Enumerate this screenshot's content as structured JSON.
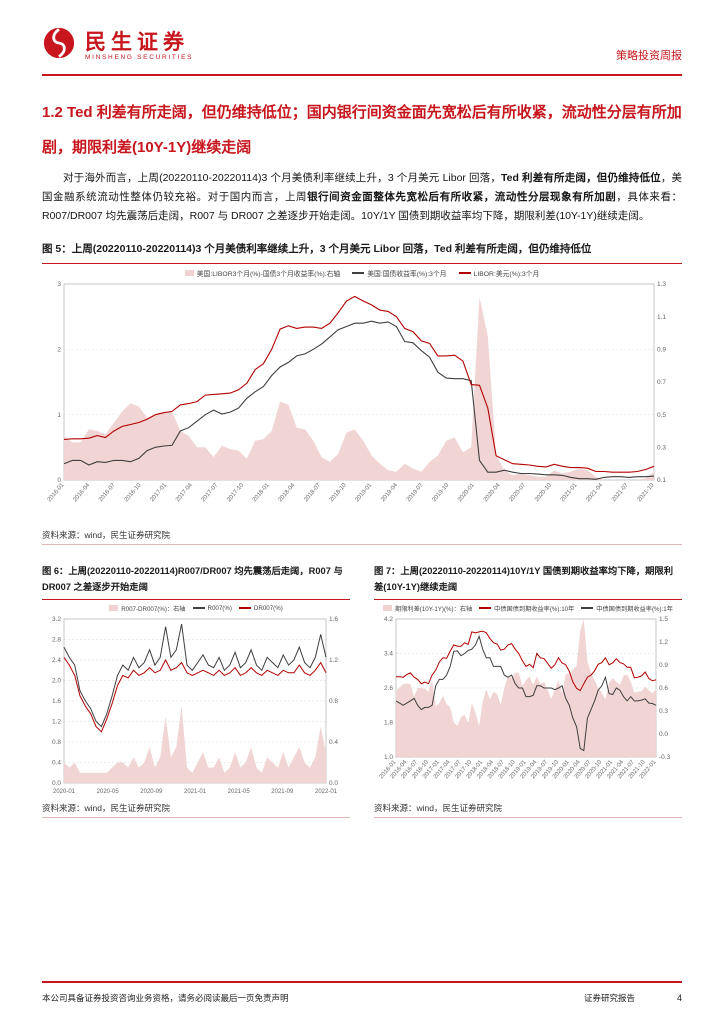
{
  "accent": "#c7161d",
  "header": {
    "brand": "民生证券",
    "brand_en": "MINSHENG SECURITIES",
    "report_type": "策略投资周报"
  },
  "section": {
    "heading": "1.2 Ted 利差有所走阔，但仍维持低位；国内银行间资金面先宽松后有所收紧，流动性分层有所加剧，期限利差(10Y-1Y)继续走阔"
  },
  "paragraph": {
    "runs": [
      {
        "t": "对于海外而言，上周(20220110-20220114)3 个月美债利率继续上升，3 个月美元 Libor 回落，",
        "b": false
      },
      {
        "t": "Ted 利差有所走阔，但仍维持低位",
        "b": true
      },
      {
        "t": "，美国金融系统流动性整体仍较充裕。对于国内而言，上周",
        "b": false
      },
      {
        "t": "银行间资金面整体先宽松后有所收紧，流动性分层现象有所加剧",
        "b": true
      },
      {
        "t": "，具体来看：R007/DR007 均先震荡后走阔，R007 与 DR007 之差逐步开始走阔。10Y/1Y 国债到期收益率均下降，期限利差(10Y-1Y)继续走阔。",
        "b": false
      }
    ]
  },
  "figures": {
    "fig5": {
      "caption": "图 5：上周(20220110-20220114)3 个月美债利率继续上升，3 个月美元 Libor 回落，Ted 利差有所走阔，但仍维持低位",
      "source": "资料来源：wind，民生证券研究院"
    },
    "fig6": {
      "caption": "图 6：上周(20220110-20220114)R007/DR007 均先震荡后走阔，R007 与 DR007 之差逐步开始走阔",
      "source": "资料来源：wind，民生证券研究院"
    },
    "fig7": {
      "caption": "图 7：上周(20220110-20220114)10Y/1Y 国债到期收益率均下降，期限利差(10Y-1Y)继续走阔",
      "source": "资料来源：wind，民生证券研究院"
    }
  },
  "footer": {
    "left": "本公司具备证券投资咨询业务资格，请务必阅读最后一页免责声明",
    "right": "证券研究报告",
    "page": "4"
  },
  "chart_data": [
    {
      "id": "fig5",
      "type": "line",
      "title": "3个月美债利率 / 3个月美元Libor / Ted利差",
      "x_rotate": true,
      "x_labels": [
        "2016-01",
        "2016-04",
        "2016-07",
        "2016-10",
        "2017-01",
        "2017-04",
        "2017-07",
        "2017-10",
        "2018-01",
        "2018-04",
        "2018-07",
        "2018-10",
        "2019-01",
        "2019-04",
        "2019-07",
        "2019-10",
        "2020-01",
        "2020-04",
        "2020-07",
        "2020-10",
        "2021-01",
        "2021-04",
        "2021-07",
        "2021-10"
      ],
      "y_left": {
        "min": 0,
        "max": 3,
        "ticks": [
          0,
          1,
          2,
          3
        ],
        "decimals": 0
      },
      "y_right": {
        "min": 0.1,
        "max": 1.3,
        "ticks": [
          0.1,
          0.3,
          0.5,
          0.7,
          0.9,
          1.1,
          1.3
        ],
        "decimals": 1
      },
      "legend": [
        {
          "label": "美国:LIBOR3个月(%)-国债3个月收益率(%):右轴",
          "color": "#f0d2d2",
          "type": "area"
        },
        {
          "label": "美国:国债收益率(%):3个月",
          "color": "#3f3f3f",
          "type": "line"
        },
        {
          "label": "LIBOR:美元(%):3个月",
          "color": "#b30000",
          "type": "line"
        }
      ],
      "series": [
        {
          "name": "Ted利差(右轴)",
          "type": "area",
          "axis": "right",
          "color": "#f0d2d2",
          "opacity": 0.95,
          "values": [
            0.37,
            0.33,
            0.33,
            0.41,
            0.4,
            0.38,
            0.45,
            0.52,
            0.57,
            0.55,
            0.48,
            0.5,
            0.51,
            0.52,
            0.4,
            0.37,
            0.3,
            0.3,
            0.24,
            0.31,
            0.29,
            0.28,
            0.23,
            0.34,
            0.35,
            0.4,
            0.58,
            0.56,
            0.42,
            0.41,
            0.34,
            0.24,
            0.21,
            0.26,
            0.39,
            0.41,
            0.34,
            0.25,
            0.2,
            0.16,
            0.15,
            0.2,
            0.17,
            0.15,
            0.21,
            0.25,
            0.34,
            0.36,
            0.27,
            0.3,
            1.22,
            0.98,
            0.25,
            0.16,
            0.13,
            0.14,
            0.13,
            0.12,
            0.12,
            0.16,
            0.14,
            0.15,
            0.17,
            0.16,
            0.12,
            0.09,
            0.07,
            0.07,
            0.08,
            0.08,
            0.11,
            0.15
          ]
        },
        {
          "name": "美国国债收益率3个月",
          "type": "line",
          "axis": "left",
          "color": "#3f3f3f",
          "width": 1.1,
          "values": [
            0.25,
            0.3,
            0.3,
            0.23,
            0.28,
            0.27,
            0.3,
            0.3,
            0.28,
            0.33,
            0.45,
            0.5,
            0.52,
            0.53,
            0.75,
            0.8,
            0.9,
            1.0,
            1.07,
            1.01,
            1.04,
            1.1,
            1.25,
            1.35,
            1.43,
            1.6,
            1.73,
            1.8,
            1.9,
            1.93,
            2.0,
            2.08,
            2.19,
            2.3,
            2.35,
            2.4,
            2.4,
            2.43,
            2.4,
            2.42,
            2.35,
            2.12,
            2.1,
            1.98,
            1.88,
            1.65,
            1.56,
            1.55,
            1.55,
            1.52,
            0.3,
            0.12,
            0.12,
            0.15,
            0.12,
            0.1,
            0.1,
            0.09,
            0.08,
            0.08,
            0.07,
            0.04,
            0.02,
            0.02,
            0.01,
            0.04,
            0.05,
            0.05,
            0.04,
            0.05,
            0.05,
            0.06
          ]
        },
        {
          "name": "LIBOR美元3个月",
          "type": "line",
          "axis": "left",
          "color": "#b30000",
          "width": 1.1,
          "values": [
            0.62,
            0.63,
            0.63,
            0.64,
            0.68,
            0.65,
            0.75,
            0.82,
            0.85,
            0.88,
            0.93,
            1.0,
            1.03,
            1.05,
            1.15,
            1.17,
            1.2,
            1.3,
            1.31,
            1.32,
            1.33,
            1.38,
            1.48,
            1.69,
            1.78,
            2.0,
            2.31,
            2.36,
            2.32,
            2.34,
            2.34,
            2.32,
            2.4,
            2.56,
            2.74,
            2.81,
            2.74,
            2.68,
            2.6,
            2.58,
            2.5,
            2.32,
            2.27,
            2.13,
            2.09,
            1.9,
            1.9,
            1.91,
            1.82,
            1.46,
            1.45,
            1.1,
            0.37,
            0.31,
            0.25,
            0.24,
            0.23,
            0.21,
            0.2,
            0.24,
            0.21,
            0.19,
            0.19,
            0.18,
            0.13,
            0.13,
            0.12,
            0.12,
            0.12,
            0.13,
            0.16,
            0.21
          ]
        }
      ]
    },
    {
      "id": "fig6",
      "type": "line",
      "title": "R007 / DR007 / R007-DR007",
      "x_rotate": false,
      "x_labels": [
        "2020-01",
        "2020-05",
        "2020-09",
        "2021-01",
        "2021-05",
        "2021-09",
        "2022-01"
      ],
      "y_left": {
        "min": 0,
        "max": 3.2,
        "ticks": [
          0,
          0.4,
          0.8,
          1.2,
          1.6,
          2.0,
          2.4,
          2.8,
          3.2
        ],
        "decimals": 1
      },
      "y_right": {
        "min": 0,
        "max": 1.6,
        "ticks": [
          0,
          0.4,
          0.8,
          1.2,
          1.6
        ],
        "decimals": 1
      },
      "legend": [
        {
          "label": "R007-DR007(%)：右轴",
          "color": "#f0d2d2",
          "type": "area"
        },
        {
          "label": "R007(%)",
          "color": "#3f3f3f",
          "type": "line"
        },
        {
          "label": "DR007(%)",
          "color": "#b30000",
          "type": "line"
        }
      ],
      "series": [
        {
          "name": "R007-DR007(右轴)",
          "type": "area",
          "axis": "right",
          "color": "#f0d2d2",
          "opacity": 0.95,
          "values": [
            0.2,
            0.15,
            0.2,
            0.1,
            0.1,
            0.1,
            0.1,
            0.1,
            0.1,
            0.15,
            0.2,
            0.2,
            0.15,
            0.25,
            0.15,
            0.2,
            0.35,
            0.15,
            0.25,
            0.65,
            0.25,
            0.35,
            0.75,
            0.15,
            0.1,
            0.2,
            0.3,
            0.15,
            0.15,
            0.25,
            0.1,
            0.15,
            0.3,
            0.15,
            0.2,
            0.35,
            0.15,
            0.1,
            0.25,
            0.2,
            0.15,
            0.3,
            0.15,
            0.25,
            0.35,
            0.2,
            0.15,
            0.25,
            0.55,
            0.3
          ]
        },
        {
          "name": "R007",
          "type": "line",
          "axis": "left",
          "color": "#3f3f3f",
          "width": 1,
          "values": [
            2.65,
            2.45,
            2.3,
            1.8,
            1.6,
            1.45,
            1.2,
            1.1,
            1.35,
            1.7,
            2.1,
            2.3,
            2.2,
            2.45,
            2.25,
            2.35,
            2.6,
            2.3,
            2.45,
            3.05,
            2.45,
            2.6,
            3.1,
            2.3,
            2.2,
            2.35,
            2.5,
            2.3,
            2.25,
            2.45,
            2.2,
            2.3,
            2.55,
            2.25,
            2.35,
            2.6,
            2.3,
            2.2,
            2.45,
            2.35,
            2.25,
            2.5,
            2.3,
            2.4,
            2.65,
            2.35,
            2.25,
            2.45,
            2.9,
            2.45
          ]
        },
        {
          "name": "DR007",
          "type": "line",
          "axis": "left",
          "color": "#b30000",
          "width": 1,
          "values": [
            2.45,
            2.3,
            2.1,
            1.7,
            1.5,
            1.35,
            1.1,
            1.0,
            1.25,
            1.55,
            1.9,
            2.1,
            2.05,
            2.2,
            2.1,
            2.15,
            2.25,
            2.15,
            2.2,
            2.4,
            2.2,
            2.25,
            2.35,
            2.15,
            2.1,
            2.15,
            2.2,
            2.15,
            2.1,
            2.2,
            2.1,
            2.15,
            2.25,
            2.1,
            2.15,
            2.25,
            2.15,
            2.1,
            2.2,
            2.15,
            2.1,
            2.2,
            2.15,
            2.15,
            2.3,
            2.15,
            2.1,
            2.2,
            2.35,
            2.15
          ]
        }
      ]
    },
    {
      "id": "fig7",
      "type": "line",
      "title": "10Y/1Y 国债到期收益率与期限利差",
      "x_rotate": true,
      "x_labels": [
        "2016-01",
        "2016-04",
        "2016-07",
        "2016-10",
        "2017-01",
        "2017-04",
        "2017-07",
        "2017-10",
        "2018-01",
        "2018-04",
        "2018-07",
        "2018-10",
        "2019-01",
        "2019-04",
        "2019-07",
        "2019-10",
        "2020-01",
        "2020-04",
        "2020-07",
        "2020-10",
        "2021-01",
        "2021-04",
        "2021-07",
        "2021-10",
        "2022-01"
      ],
      "y_left": {
        "min": 1.0,
        "max": 4.2,
        "ticks": [
          1.0,
          1.8,
          2.6,
          3.4,
          4.2
        ],
        "decimals": 1
      },
      "y_right": {
        "min": -0.3,
        "max": 1.5,
        "ticks": [
          -0.3,
          0,
          0.3,
          0.6,
          0.9,
          1.2,
          1.5
        ],
        "decimals": 1
      },
      "legend": [
        {
          "label": "期限利差(10Y-1Y)(%)：右轴",
          "color": "#f0d2d2",
          "type": "area"
        },
        {
          "label": "中债国债到期收益率(%):10年",
          "color": "#b30000",
          "type": "line"
        },
        {
          "label": "中债国债到期收益率(%):1年",
          "color": "#3f3f3f",
          "type": "line"
        }
      ],
      "series": [
        {
          "name": "期限利差10Y-1Y(右轴)",
          "type": "area",
          "axis": "right",
          "color": "#f0d2d2",
          "opacity": 0.95,
          "values": [
            0.56,
            0.61,
            0.65,
            0.66,
            0.65,
            0.49,
            0.6,
            0.6,
            0.59,
            0.55,
            0.7,
            0.36,
            0.4,
            0.5,
            0.39,
            0.35,
            0.15,
            0.11,
            0.22,
            0.25,
            0.14,
            0.4,
            0.28,
            0.1,
            0.42,
            0.58,
            0.45,
            0.55,
            0.52,
            0.38,
            0.6,
            0.75,
            0.73,
            0.8,
            0.8,
            0.63,
            0.7,
            0.75,
            0.64,
            0.75,
            0.65,
            0.68,
            0.57,
            0.46,
            0.58,
            0.7,
            0.53,
            0.78,
            0.79,
            0.84,
            0.89,
            1.34,
            1.55,
            0.95,
            0.8,
            0.7,
            0.6,
            0.54,
            0.45,
            0.67,
            0.73,
            0.68,
            0.64,
            0.76,
            0.78,
            0.68,
            0.54,
            0.55,
            0.56,
            0.62,
            0.57,
            0.53,
            0.59
          ]
        },
        {
          "name": "中债国债到期收益率10年",
          "type": "line",
          "axis": "left",
          "color": "#b30000",
          "width": 1,
          "values": [
            2.86,
            2.86,
            2.85,
            2.91,
            2.95,
            2.85,
            2.8,
            2.7,
            2.74,
            2.7,
            2.9,
            3.01,
            3.2,
            3.3,
            3.29,
            3.45,
            3.6,
            3.57,
            3.57,
            3.65,
            3.61,
            3.9,
            3.88,
            3.9,
            3.92,
            3.88,
            3.75,
            3.65,
            3.62,
            3.48,
            3.5,
            3.6,
            3.63,
            3.5,
            3.4,
            3.23,
            3.1,
            3.15,
            3.07,
            3.4,
            3.3,
            3.28,
            3.17,
            3.06,
            3.14,
            3.3,
            3.18,
            3.14,
            2.99,
            2.74,
            2.59,
            2.54,
            2.7,
            2.85,
            2.9,
            3.0,
            3.15,
            3.19,
            3.3,
            3.14,
            3.18,
            3.28,
            3.19,
            3.16,
            3.08,
            3.08,
            2.84,
            2.85,
            2.88,
            2.97,
            2.82,
            2.77,
            2.79
          ]
        },
        {
          "name": "中债国债到期收益率1年",
          "type": "line",
          "axis": "left",
          "color": "#3f3f3f",
          "width": 1,
          "values": [
            2.3,
            2.25,
            2.2,
            2.25,
            2.3,
            2.36,
            2.2,
            2.1,
            2.15,
            2.15,
            2.2,
            2.65,
            2.8,
            2.8,
            2.9,
            3.1,
            3.45,
            3.46,
            3.35,
            3.4,
            3.47,
            3.5,
            3.6,
            3.8,
            3.5,
            3.3,
            3.3,
            3.1,
            3.1,
            3.1,
            2.9,
            2.85,
            2.9,
            2.7,
            2.6,
            2.6,
            2.4,
            2.4,
            2.43,
            2.65,
            2.65,
            2.6,
            2.6,
            2.6,
            2.56,
            2.6,
            2.65,
            2.36,
            2.2,
            1.9,
            1.7,
            1.2,
            1.15,
            1.9,
            2.1,
            2.3,
            2.55,
            2.65,
            2.85,
            2.47,
            2.45,
            2.6,
            2.55,
            2.4,
            2.3,
            2.4,
            2.3,
            2.3,
            2.32,
            2.35,
            2.25,
            2.24,
            2.2
          ]
        }
      ]
    }
  ]
}
